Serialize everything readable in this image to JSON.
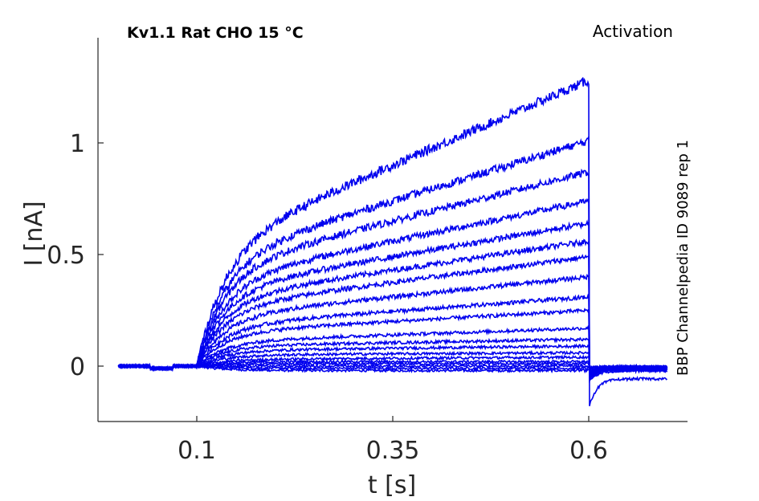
{
  "chart_data": {
    "type": "line",
    "title": "Kv1.1  Rat  CHO  15 °C",
    "annotation_right": "Activation",
    "side_label": "BBP Channelpedia ID 9089 rep 1",
    "xlabel": "t [s]",
    "ylabel": "I [nA]",
    "xlim": [
      -0.0,
      0.75
    ],
    "ylim": [
      -0.25,
      1.47
    ],
    "xticks": [
      0.1,
      0.35,
      0.6
    ],
    "xtick_labels": [
      "0.1",
      "0.35",
      "0.6"
    ],
    "yticks": [
      0,
      0.5,
      1
    ],
    "ytick_labels": [
      "0",
      "0.5",
      "1"
    ],
    "grid": false,
    "line_color": "#0000ee",
    "pulse_start": 0.1,
    "pulse_end": 0.6,
    "trace_start": 0.0,
    "trace_end": 0.7,
    "series": [
      {
        "start_amp": -0.02,
        "end_amp": -0.02,
        "tail": -0.01
      },
      {
        "start_amp": -0.01,
        "end_amp": -0.01,
        "tail": -0.01
      },
      {
        "start_amp": 0.0,
        "end_amp": 0.0,
        "tail": -0.02
      },
      {
        "start_amp": 0.01,
        "end_amp": 0.01,
        "tail": -0.01
      },
      {
        "start_amp": 0.02,
        "end_amp": 0.02,
        "tail": -0.02
      },
      {
        "start_amp": 0.03,
        "end_amp": 0.04,
        "tail": -0.02
      },
      {
        "start_amp": 0.05,
        "end_amp": 0.06,
        "tail": -0.03
      },
      {
        "start_amp": 0.07,
        "end_amp": 0.09,
        "tail": -0.03
      },
      {
        "start_amp": 0.09,
        "end_amp": 0.12,
        "tail": -0.03
      },
      {
        "start_amp": 0.11,
        "end_amp": 0.17,
        "tail": -0.03
      },
      {
        "start_amp": 0.15,
        "end_amp": 0.25,
        "tail": -0.04
      },
      {
        "start_amp": 0.18,
        "end_amp": 0.31,
        "tail": -0.04
      },
      {
        "start_amp": 0.22,
        "end_amp": 0.4,
        "tail": -0.04
      },
      {
        "start_amp": 0.26,
        "end_amp": 0.49,
        "tail": -0.05
      },
      {
        "start_amp": 0.3,
        "end_amp": 0.56,
        "tail": -0.05
      },
      {
        "start_amp": 0.34,
        "end_amp": 0.64,
        "tail": -0.05
      },
      {
        "start_amp": 0.38,
        "end_amp": 0.74,
        "tail": -0.06
      },
      {
        "start_amp": 0.43,
        "end_amp": 0.87,
        "tail": -0.06
      },
      {
        "start_amp": 0.47,
        "end_amp": 1.01,
        "tail": -0.07
      },
      {
        "start_amp": 0.52,
        "end_amp": 1.28,
        "tail": -0.19
      }
    ]
  }
}
